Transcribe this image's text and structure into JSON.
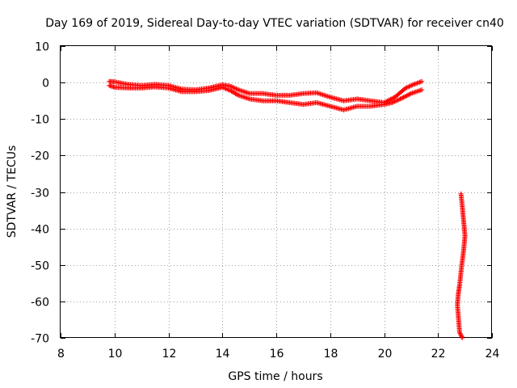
{
  "chart_data": {
    "type": "scatter",
    "title": "Day 169 of 2019, Sidereal Day-to-day VTEC variation (SDTVAR) for receiver cn40",
    "xlabel": "GPS time / hours",
    "ylabel": "SDTVAR / TECUs",
    "xlim": [
      8,
      24
    ],
    "ylim": [
      -70,
      10
    ],
    "xticks": [
      8,
      10,
      12,
      14,
      16,
      18,
      20,
      22,
      24
    ],
    "yticks": [
      10,
      0,
      -10,
      -20,
      -30,
      -40,
      -50,
      -60,
      -70
    ],
    "grid": true,
    "marker": "+",
    "color": "#ff0000",
    "series": [
      {
        "name": "track-a-upper",
        "x": [
          9.8,
          10.0,
          10.5,
          11.0,
          11.5,
          12.0,
          12.5,
          13.0,
          13.5,
          14.0,
          14.3,
          14.6,
          15.0,
          15.5,
          16.0,
          16.5,
          17.0,
          17.5,
          18.0,
          18.5,
          19.0,
          19.5,
          20.0,
          20.4,
          20.8,
          21.1,
          21.4
        ],
        "y": [
          0.3,
          0.2,
          -0.5,
          -0.8,
          -0.5,
          -0.8,
          -1.8,
          -2.0,
          -1.5,
          -0.6,
          -1.0,
          -2.0,
          -3.0,
          -3.0,
          -3.5,
          -3.5,
          -3.0,
          -2.8,
          -4.0,
          -5.0,
          -4.5,
          -5.0,
          -5.5,
          -4.0,
          -1.5,
          -0.5,
          0.3
        ]
      },
      {
        "name": "track-b-lower",
        "x": [
          9.8,
          10.0,
          10.5,
          11.0,
          11.5,
          12.0,
          12.5,
          13.0,
          13.5,
          14.0,
          14.3,
          14.6,
          15.0,
          15.5,
          16.0,
          16.5,
          17.0,
          17.5,
          18.0,
          18.5,
          19.0,
          19.5,
          20.0,
          20.3,
          20.6,
          21.0,
          21.4
        ],
        "y": [
          -0.8,
          -1.3,
          -1.5,
          -1.5,
          -1.2,
          -1.5,
          -2.5,
          -2.5,
          -2.2,
          -1.3,
          -2.2,
          -3.5,
          -4.5,
          -5.0,
          -5.0,
          -5.5,
          -6.0,
          -5.5,
          -6.5,
          -7.5,
          -6.5,
          -6.5,
          -6.0,
          -5.5,
          -4.5,
          -3.0,
          -2.0
        ]
      },
      {
        "name": "track-c-tail",
        "x": [
          22.85,
          22.9,
          22.95,
          23.0,
          22.95,
          22.88,
          22.8,
          22.75,
          22.72,
          22.8,
          22.9
        ],
        "y": [
          -30.5,
          -34.0,
          -38.0,
          -42.0,
          -46.0,
          -50.0,
          -55.5,
          -58.0,
          -61.0,
          -68.5,
          -70.0
        ]
      }
    ]
  }
}
